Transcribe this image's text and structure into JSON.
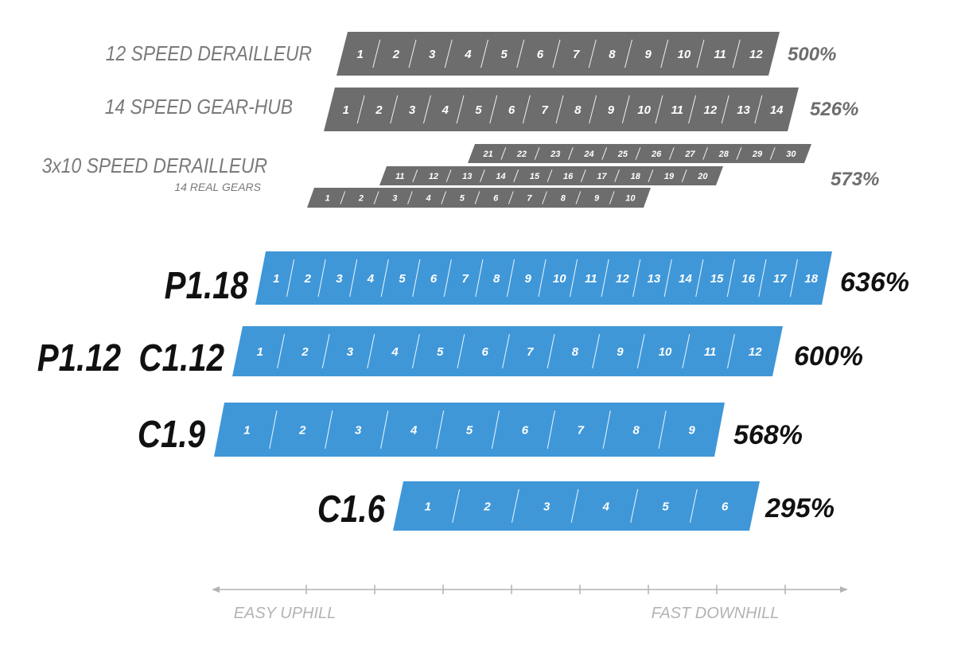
{
  "chart_data": {
    "type": "bar",
    "title": "",
    "xlabel": "",
    "ylabel": "",
    "axis": {
      "left_label": "EASY UPHILL",
      "right_label": "FAST DOWNHILL",
      "tick_count": 8
    },
    "colors": {
      "grey_bar": "#6d6d6d",
      "blue_bar": "#3f97d8",
      "grey_label": "#7a7a7a",
      "dark_label": "#111111",
      "bar_text": "#ffffff",
      "axis": "#b3b3b3"
    },
    "comparison_systems": [
      {
        "name": "12 SPEED DERAILLEUR",
        "sub": "",
        "range": "500%",
        "rows": [
          {
            "gears": [
              "1",
              "2",
              "3",
              "4",
              "5",
              "6",
              "7",
              "8",
              "9",
              "10",
              "11",
              "12"
            ]
          }
        ]
      },
      {
        "name": "14 SPEED GEAR-HUB",
        "sub": "",
        "range": "526%",
        "rows": [
          {
            "gears": [
              "1",
              "2",
              "3",
              "4",
              "5",
              "6",
              "7",
              "8",
              "9",
              "10",
              "11",
              "12",
              "13",
              "14"
            ]
          }
        ]
      },
      {
        "name": "3x10 SPEED DERAILLEUR",
        "sub": "14 REAL GEARS",
        "range": "573%",
        "rows": [
          {
            "gears": [
              "21",
              "22",
              "23",
              "24",
              "25",
              "26",
              "27",
              "28",
              "29",
              "30"
            ]
          },
          {
            "gears": [
              "11",
              "12",
              "13",
              "14",
              "15",
              "16",
              "17",
              "18",
              "19",
              "20"
            ]
          },
          {
            "gears": [
              "1",
              "2",
              "3",
              "4",
              "5",
              "6",
              "7",
              "8",
              "9",
              "10"
            ]
          }
        ]
      }
    ],
    "pinion_systems": [
      {
        "name": "P1.18",
        "range": "636%",
        "gears": [
          "1",
          "2",
          "3",
          "4",
          "5",
          "6",
          "7",
          "8",
          "9",
          "10",
          "11",
          "12",
          "13",
          "14",
          "15",
          "16",
          "17",
          "18"
        ]
      },
      {
        "name": "P1.12  C1.12",
        "range": "600%",
        "gears": [
          "1",
          "2",
          "3",
          "4",
          "5",
          "6",
          "7",
          "8",
          "9",
          "10",
          "11",
          "12"
        ]
      },
      {
        "name": "C1.9",
        "range": "568%",
        "gears": [
          "1",
          "2",
          "3",
          "4",
          "5",
          "6",
          "7",
          "8",
          "9"
        ]
      },
      {
        "name": "C1.6",
        "range": "295%",
        "gears": [
          "1",
          "2",
          "3",
          "4",
          "5",
          "6"
        ]
      }
    ]
  }
}
